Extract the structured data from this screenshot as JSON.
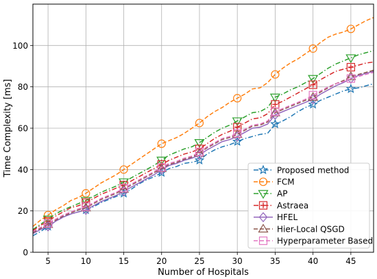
{
  "chart_data": {
    "type": "line",
    "title": "",
    "xlabel": "Number of Hospitals",
    "ylabel": "Time Complexity [ms]",
    "xlim": [
      3,
      48
    ],
    "ylim": [
      0,
      120
    ],
    "xticks": [
      5,
      10,
      15,
      20,
      25,
      30,
      35,
      40,
      45
    ],
    "yticks": [
      0,
      20,
      40,
      60,
      80,
      100
    ],
    "grid": true,
    "legend_position": "lower-right",
    "x": [
      3,
      4,
      5,
      6,
      7,
      8,
      9,
      10,
      11,
      12,
      13,
      14,
      15,
      16,
      17,
      18,
      19,
      20,
      21,
      22,
      23,
      24,
      25,
      26,
      27,
      28,
      29,
      30,
      31,
      32,
      33,
      34,
      35,
      36,
      37,
      38,
      39,
      40,
      41,
      42,
      43,
      44,
      45,
      46,
      47,
      48
    ],
    "series": [
      {
        "name": "Proposed method",
        "color": "#1f77b4",
        "dash": "dashdot",
        "marker": "star",
        "values": [
          8,
          10,
          12.5,
          15,
          17,
          18.5,
          19.5,
          20.5,
          22,
          24,
          25.5,
          27,
          28.5,
          30.5,
          33,
          35,
          36.5,
          38.5,
          40.5,
          41.5,
          43,
          43.5,
          44.5,
          47.5,
          49.5,
          51,
          52,
          53.5,
          55,
          56,
          57,
          57.5,
          62,
          63.5,
          65.5,
          68,
          70,
          71.5,
          73.5,
          75,
          76.5,
          78,
          79,
          79.5,
          80.5,
          81.5
        ]
      },
      {
        "name": "FCM",
        "color": "#ff7f0e",
        "dash": "dashed",
        "marker": "circle",
        "values": [
          12.5,
          15.5,
          18,
          20.5,
          22.5,
          25,
          26.5,
          28.5,
          31,
          33.5,
          35.5,
          37.5,
          40,
          42.5,
          45,
          47.5,
          50,
          52.5,
          54,
          55.5,
          57.5,
          60,
          62.5,
          65.5,
          68,
          70,
          72.5,
          74.5,
          76.5,
          79,
          79.5,
          82,
          86,
          89,
          91.5,
          93.5,
          96,
          98.5,
          101.5,
          104,
          105.5,
          106.5,
          108,
          110,
          112,
          113.5
        ]
      },
      {
        "name": "AP",
        "color": "#2ca02c",
        "dash": "dashdot",
        "marker": "triangle-down",
        "values": [
          11,
          13.5,
          16,
          18.5,
          20.5,
          22,
          23.5,
          25,
          27,
          29,
          30.5,
          32,
          34,
          36,
          38,
          40,
          42,
          44.5,
          47,
          48.5,
          50,
          51,
          53,
          55.5,
          58,
          60,
          61.5,
          63.5,
          65.5,
          67.5,
          68,
          70,
          75,
          76.5,
          78.5,
          80,
          82,
          84,
          86.5,
          89,
          91,
          92.5,
          94,
          95.5,
          96.5,
          97.5
        ]
      },
      {
        "name": "Astraea",
        "color": "#d62728",
        "dash": "dashdot",
        "marker": "plus-square",
        "values": [
          10.5,
          13,
          15,
          17.5,
          19.5,
          21.5,
          22.5,
          24,
          26,
          28,
          29.5,
          31,
          32.5,
          34.5,
          36.5,
          38.5,
          40.5,
          42.5,
          44.5,
          46,
          47.5,
          48.5,
          50,
          52.5,
          55,
          57,
          58.5,
          60.5,
          62.5,
          64.5,
          65,
          67,
          71.5,
          73,
          75,
          77,
          79,
          81,
          83.5,
          85.5,
          87.5,
          88.5,
          89.5,
          90.5,
          91.5,
          92
        ]
      },
      {
        "name": "HFEL",
        "color": "#9467bd",
        "dash": "solid",
        "marker": "diamond",
        "values": [
          9,
          11,
          12.5,
          15,
          17,
          18.5,
          19.5,
          20.5,
          22.5,
          24.5,
          26,
          27.5,
          29.5,
          31.5,
          33.5,
          35.5,
          37.5,
          40,
          42,
          43,
          44.5,
          45.5,
          47,
          49.5,
          51.5,
          53.5,
          54.5,
          56,
          58,
          60,
          60.5,
          62,
          66.5,
          68,
          69.5,
          71,
          72.5,
          74,
          76.5,
          78.5,
          80.5,
          82,
          84,
          85.5,
          86.5,
          87.5
        ]
      },
      {
        "name": "Hier-Local QSGD",
        "color": "#8c564b",
        "dash": "dashed",
        "marker": "triangle-up",
        "values": [
          9.5,
          11.5,
          13.5,
          15.5,
          17.5,
          19,
          20.5,
          21.5,
          23.5,
          25.5,
          27,
          28.5,
          30.5,
          32.5,
          34.5,
          36.5,
          38.5,
          40.5,
          42.5,
          43.5,
          45,
          46,
          48,
          50.5,
          52.5,
          54.5,
          55.5,
          57,
          59,
          61,
          61.5,
          63,
          67.5,
          69,
          70.5,
          72,
          73.5,
          75,
          77.5,
          79.5,
          81.5,
          83,
          85,
          86,
          87,
          88
        ]
      },
      {
        "name": "Hyperparameter Based",
        "color": "#e377c2",
        "dash": "dashed",
        "marker": "square",
        "values": [
          10,
          12,
          14,
          16,
          18,
          19.5,
          21,
          22,
          24,
          26,
          27.5,
          29,
          31,
          33,
          35,
          37,
          39,
          41,
          43,
          44,
          45.5,
          46.5,
          48.5,
          51,
          53,
          55,
          56,
          57.5,
          59.5,
          61.5,
          62,
          63.5,
          68,
          69.5,
          71,
          72.5,
          74,
          76,
          78,
          80,
          81.5,
          82.5,
          84,
          85,
          86,
          87
        ]
      }
    ]
  }
}
